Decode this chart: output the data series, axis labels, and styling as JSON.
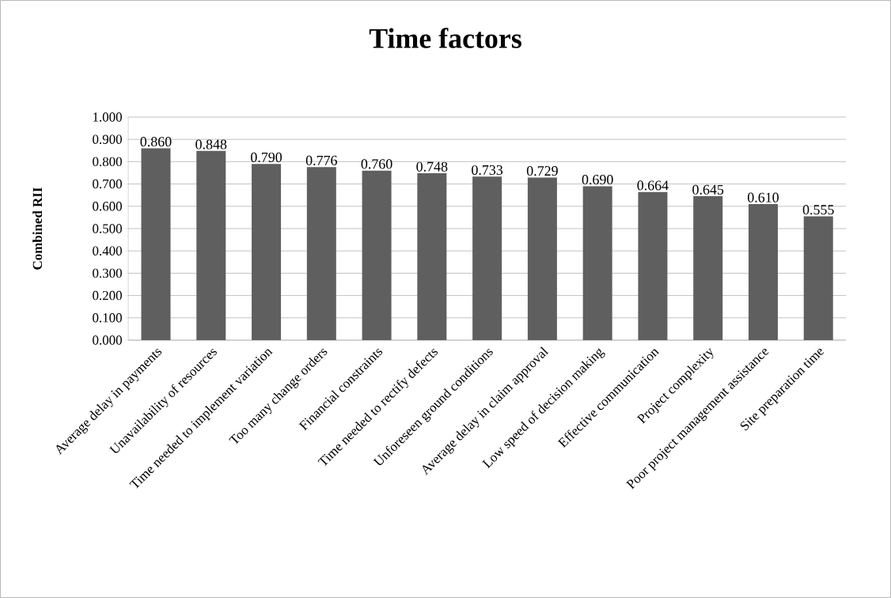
{
  "chart_data": {
    "type": "bar",
    "title": "Time factors",
    "ylabel": "Combined RII",
    "categories": [
      "Average delay in payments",
      "Unavailability of resources",
      "Time needed to implement variation",
      "Too many change orders",
      "Financial constraints",
      "Time needed to rectify defects",
      "Unforeseen ground conditions",
      "Average delay in claim approval",
      "Low speed of decision making",
      "Effective communication",
      "Project complexity",
      "Poor project management assistance",
      "Site preparation time"
    ],
    "values": [
      0.86,
      0.848,
      0.79,
      0.776,
      0.76,
      0.748,
      0.733,
      0.729,
      0.69,
      0.664,
      0.645,
      0.61,
      0.555
    ],
    "value_labels": [
      "0.860",
      "0.848",
      "0.790",
      "0.776",
      "0.760",
      "0.748",
      "0.733",
      "0.729",
      "0.690",
      "0.664",
      "0.645",
      "0.610",
      "0.555"
    ],
    "color": "#5f5f5f",
    "ylim": [
      0,
      1
    ],
    "yticks": [
      {
        "value": 0,
        "label": "0.000"
      },
      {
        "value": 0.1,
        "label": "0.100"
      },
      {
        "value": 0.2,
        "label": "0.200"
      },
      {
        "value": 0.3,
        "label": "0.300"
      },
      {
        "value": 0.4,
        "label": "0.400"
      },
      {
        "value": 0.5,
        "label": "0.500"
      },
      {
        "value": 0.6,
        "label": "0.600"
      },
      {
        "value": 0.7,
        "label": "0.700"
      },
      {
        "value": 0.8,
        "label": "0.800"
      },
      {
        "value": 0.9,
        "label": "0.900"
      },
      {
        "value": 1,
        "label": "1.000"
      }
    ],
    "grid": "y"
  }
}
